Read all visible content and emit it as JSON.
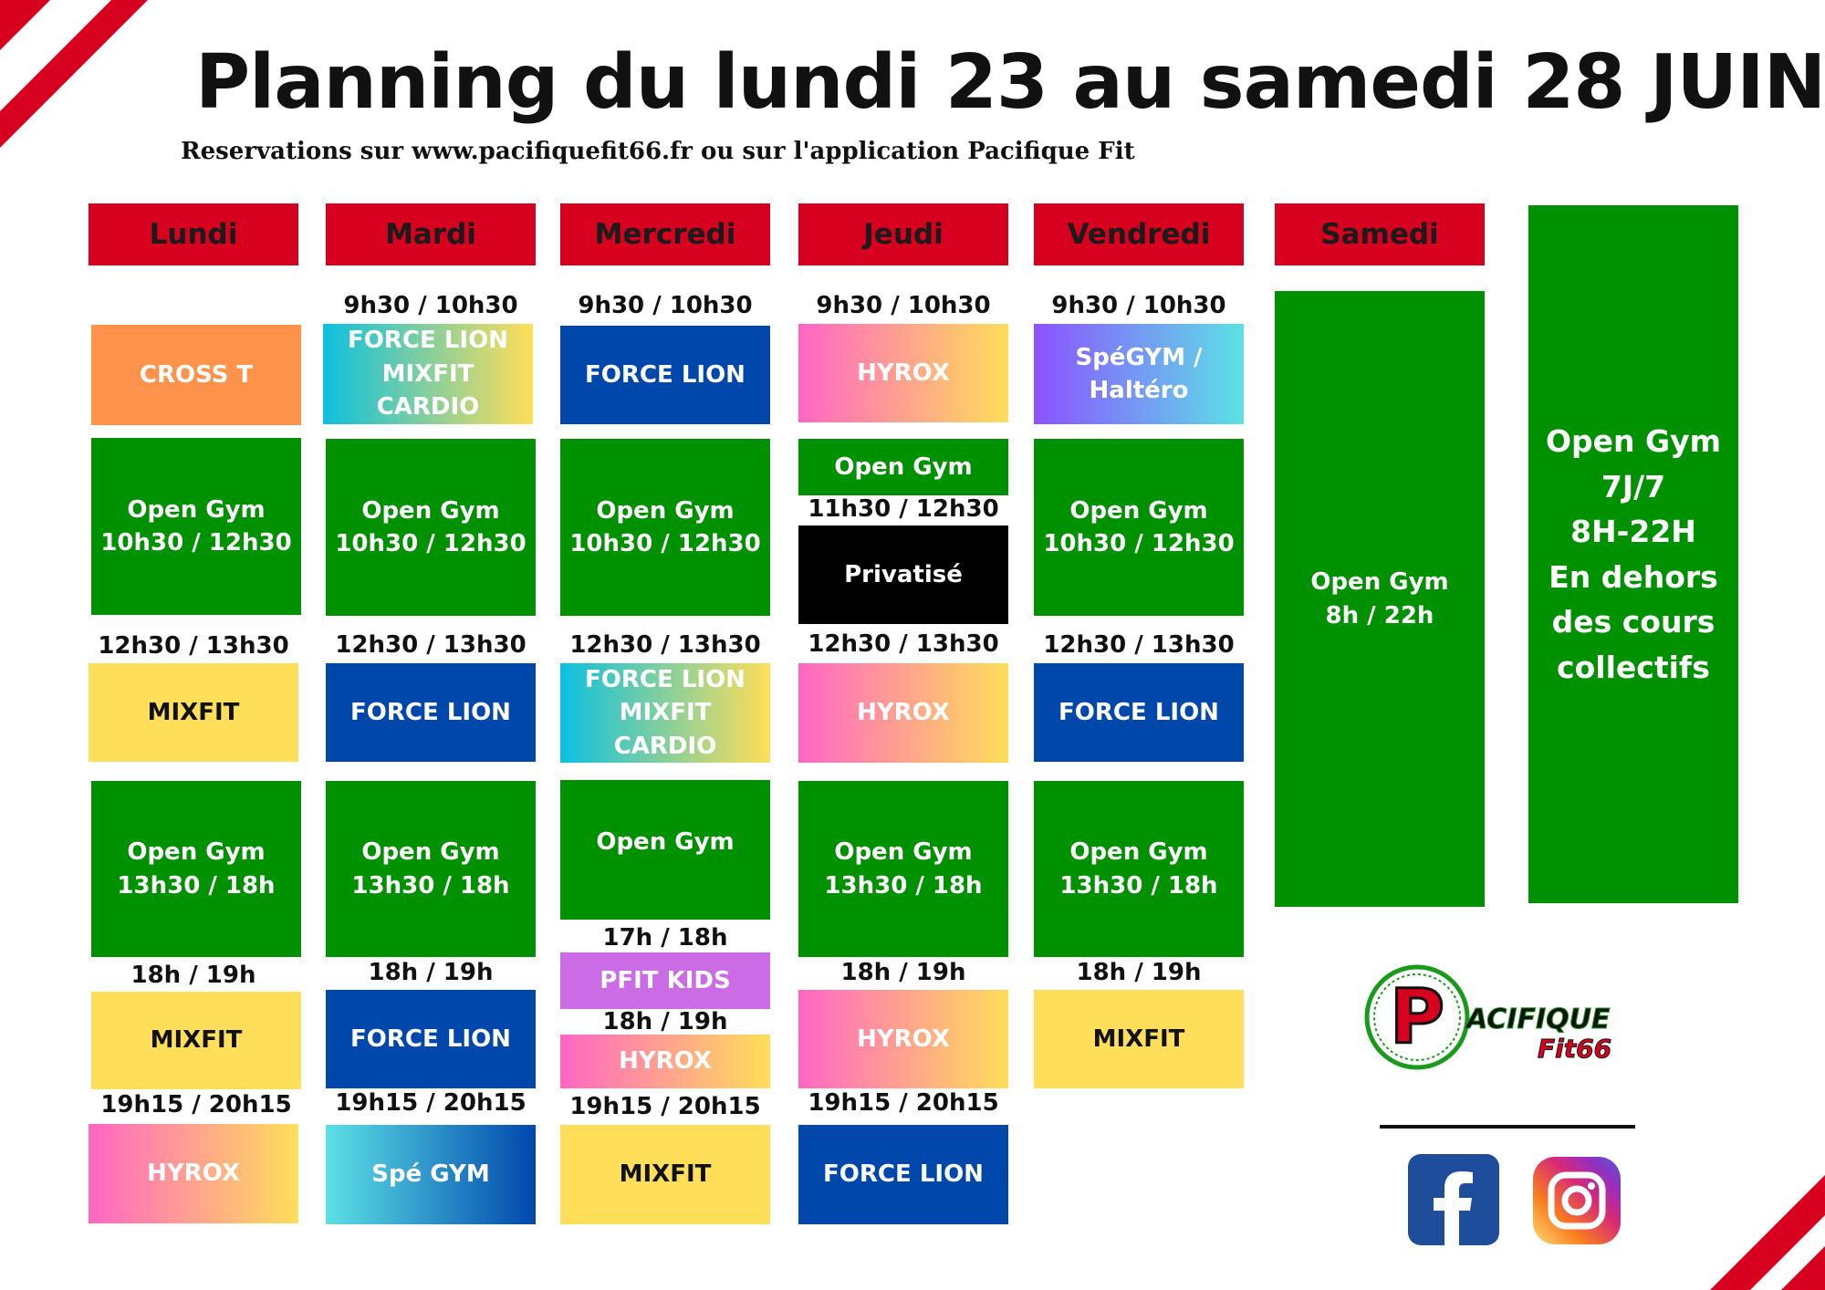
{
  "header": {
    "title": "Planning du lundi 23 au samedi 28 JUIN",
    "subtitle": "Reservations sur www.pacifiquefit66.fr ou sur l'application Pacifique Fit"
  },
  "days": [
    "Lundi",
    "Mardi",
    "Mercredi",
    "Jeudi",
    "Vendredi",
    "Samedi"
  ],
  "schedule": {
    "lundi": {
      "b1": "CROSS T",
      "b2": "Open Gym\n10h30 / 12h30",
      "t2": "12h30 / 13h30",
      "b3": "MIXFIT",
      "b4": "Open Gym\n13h30 / 18h",
      "t4": "18h / 19h",
      "b5": "MIXFIT",
      "t5": "19h15 / 20h15",
      "b6": "HYROX"
    },
    "mardi": {
      "t1": "9h30 / 10h30",
      "b1": "FORCE LION\nMIXFIT CARDIO",
      "b2": "Open Gym\n10h30 / 12h30",
      "t2": "12h30 / 13h30",
      "b3": "FORCE LION",
      "b4": "Open Gym\n13h30 / 18h",
      "t4": "18h / 19h",
      "b5": "FORCE LION",
      "t5": "19h15 / 20h15",
      "b6": "Spé GYM"
    },
    "mercredi": {
      "t1": "9h30 / 10h30",
      "b1": "FORCE LION",
      "b2": "Open Gym\n10h30 / 12h30",
      "t2": "12h30 / 13h30",
      "b3": "FORCE LION\nMIXFIT CARDIO",
      "b4": "Open Gym",
      "t4": "17h / 18h",
      "b5": "PFIT KIDS",
      "t5": "18h / 19h",
      "b6": "HYROX",
      "t6": "19h15 / 20h15",
      "b7": "MIXFIT"
    },
    "jeudi": {
      "t1": "9h30 / 10h30",
      "b1": "HYROX",
      "b2": "Open Gym",
      "t2": "11h30 / 12h30",
      "b3": "Privatisé",
      "t3": "12h30 / 13h30",
      "b4": "HYROX",
      "b5": "Open Gym\n13h30 / 18h",
      "t5": "18h / 19h",
      "b6": "HYROX",
      "t6": "19h15 / 20h15",
      "b7": "FORCE LION"
    },
    "vendredi": {
      "t1": "9h30 / 10h30",
      "b1": "SpéGYM /\nHaltéro",
      "b2": "Open Gym\n10h30 / 12h30",
      "t2": "12h30 / 13h30",
      "b3": "FORCE LION",
      "b4": "Open Gym\n13h30 / 18h",
      "t4": "18h / 19h",
      "b5": "MIXFIT"
    },
    "samedi": {
      "b1": "Open Gym\n8h / 22h"
    }
  },
  "open_gym_box": "Open Gym\n7J/7\n8H-22H\nEn dehors\ndes cours\ncollectifs",
  "logo": {
    "text_line1": "ACIFIQUE",
    "text_line2": "Fit66",
    "letter": "P"
  },
  "social": {
    "facebook_icon": "facebook-icon",
    "instagram_icon": "instagram-icon"
  },
  "colors": {
    "day_header": "#d7001e",
    "open_gym": "#009100",
    "force_lion": "#0047ac",
    "mixfit": "#ffde59",
    "cross_t": "#ff934c",
    "pfit_kids": "#cb6ce6",
    "privatise": "#000000"
  }
}
